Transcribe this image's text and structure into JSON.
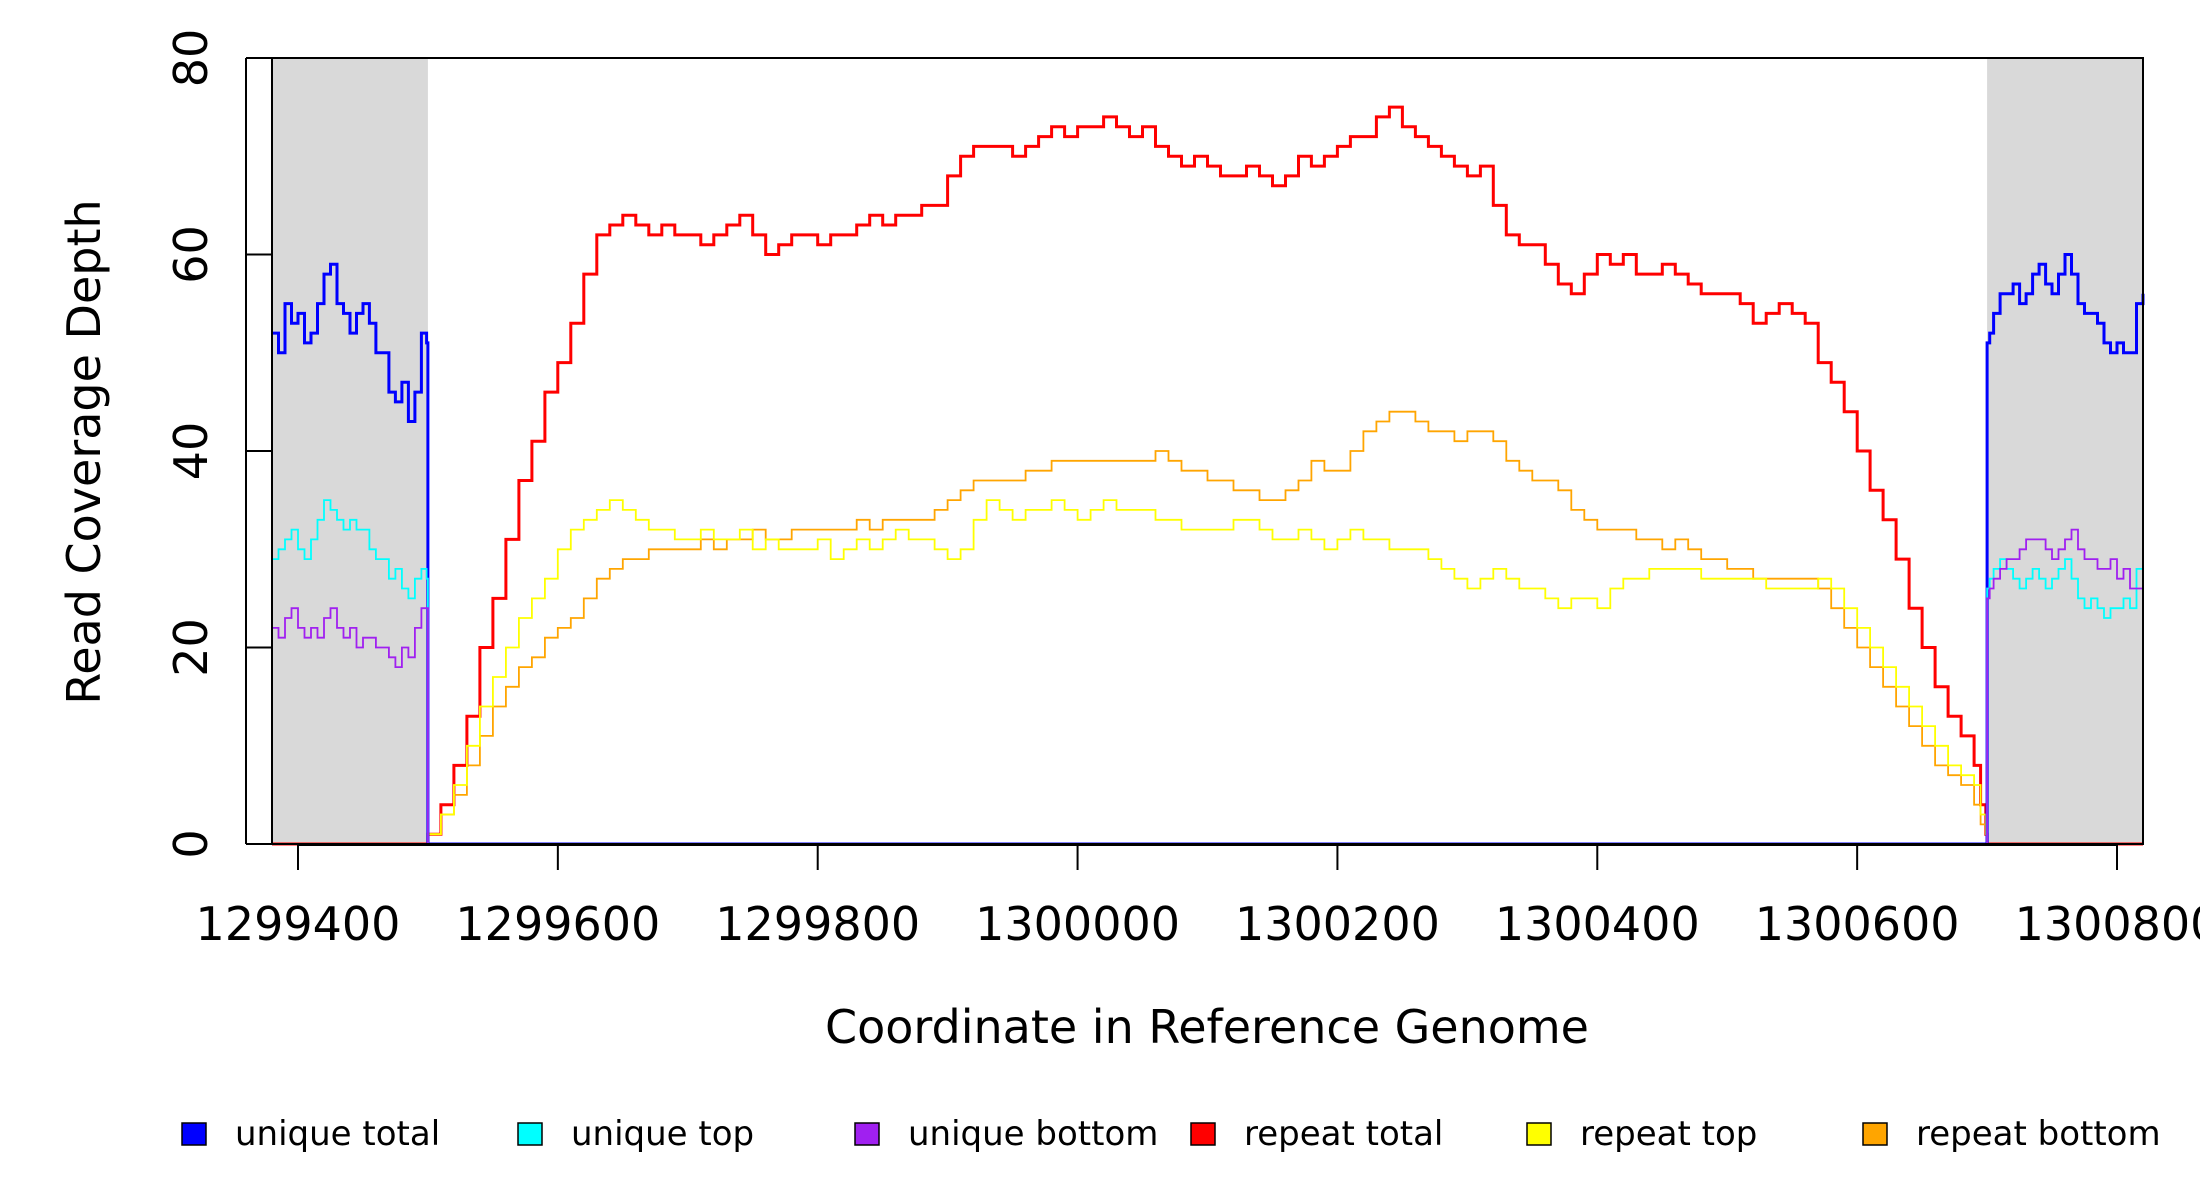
{
  "chart_data": {
    "type": "line",
    "title": "",
    "xlabel": "Coordinate in Reference Genome",
    "ylabel": "Read Coverage Depth",
    "xlim": [
      1299380,
      1300820
    ],
    "ylim": [
      0,
      80
    ],
    "x_ticks": [
      1299400,
      1299600,
      1299800,
      1300000,
      1300200,
      1300400,
      1300600,
      1300800
    ],
    "x_tick_labels": [
      "1299400",
      "1299600",
      "1299800",
      "1300000",
      "1300200",
      "1300400",
      "1300600",
      "1300800"
    ],
    "y_ticks": [
      0,
      20,
      40,
      60,
      80
    ],
    "y_tick_labels": [
      "0",
      "20",
      "40",
      "60",
      "80"
    ],
    "grid": false,
    "shaded_regions": [
      {
        "x": [
          1299380,
          1299500
        ],
        "color": "#d9d9d9"
      },
      {
        "x": [
          1300700,
          1300820
        ],
        "color": "#d9d9d9"
      }
    ],
    "legend_position": "bottom",
    "series": [
      {
        "name": "unique total",
        "color": "#0000ff",
        "x": [
          1299380,
          1299385,
          1299390,
          1299395,
          1299400,
          1299405,
          1299410,
          1299415,
          1299420,
          1299425,
          1299430,
          1299435,
          1299440,
          1299445,
          1299450,
          1299455,
          1299460,
          1299465,
          1299470,
          1299475,
          1299480,
          1299485,
          1299490,
          1299495,
          1299499,
          1299500,
          1299501,
          1300699,
          1300700,
          1300702,
          1300705,
          1300710,
          1300715,
          1300720,
          1300725,
          1300730,
          1300735,
          1300740,
          1300745,
          1300750,
          1300755,
          1300760,
          1300765,
          1300770,
          1300775,
          1300780,
          1300785,
          1300790,
          1300795,
          1300800,
          1300805,
          1300810,
          1300815,
          1300820
        ],
        "y": [
          52,
          50,
          55,
          53,
          54,
          51,
          52,
          55,
          58,
          59,
          55,
          54,
          52,
          54,
          55,
          53,
          50,
          50,
          46,
          45,
          47,
          43,
          46,
          52,
          51,
          0,
          0,
          0,
          51,
          52,
          54,
          56,
          56,
          57,
          55,
          56,
          58,
          59,
          57,
          56,
          58,
          60,
          58,
          55,
          54,
          54,
          53,
          51,
          50,
          51,
          50,
          50,
          55,
          56
        ]
      },
      {
        "name": "unique top",
        "color": "#00ffff",
        "x": [
          1299380,
          1299385,
          1299390,
          1299395,
          1299400,
          1299405,
          1299410,
          1299415,
          1299420,
          1299425,
          1299430,
          1299435,
          1299440,
          1299445,
          1299450,
          1299455,
          1299460,
          1299465,
          1299470,
          1299475,
          1299480,
          1299485,
          1299490,
          1299495,
          1299499,
          1299500,
          1299501,
          1300699,
          1300700,
          1300702,
          1300705,
          1300710,
          1300715,
          1300720,
          1300725,
          1300730,
          1300735,
          1300740,
          1300745,
          1300750,
          1300755,
          1300760,
          1300765,
          1300770,
          1300775,
          1300780,
          1300785,
          1300790,
          1300795,
          1300800,
          1300805,
          1300810,
          1300815,
          1300820
        ],
        "y": [
          29,
          30,
          31,
          32,
          30,
          29,
          31,
          33,
          35,
          34,
          33,
          32,
          33,
          32,
          32,
          30,
          29,
          29,
          27,
          28,
          26,
          25,
          27,
          28,
          27,
          0,
          0,
          0,
          26,
          27,
          28,
          29,
          28,
          27,
          26,
          27,
          28,
          27,
          26,
          27,
          28,
          29,
          27,
          25,
          24,
          25,
          24,
          23,
          24,
          24,
          25,
          24,
          28,
          29
        ]
      },
      {
        "name": "unique bottom",
        "color": "#a020f0",
        "x": [
          1299380,
          1299385,
          1299390,
          1299395,
          1299400,
          1299405,
          1299410,
          1299415,
          1299420,
          1299425,
          1299430,
          1299435,
          1299440,
          1299445,
          1299450,
          1299455,
          1299460,
          1299465,
          1299470,
          1299475,
          1299480,
          1299485,
          1299490,
          1299495,
          1299499,
          1299500,
          1299501,
          1300699,
          1300700,
          1300702,
          1300705,
          1300710,
          1300715,
          1300720,
          1300725,
          1300730,
          1300735,
          1300740,
          1300745,
          1300750,
          1300755,
          1300760,
          1300765,
          1300770,
          1300775,
          1300780,
          1300785,
          1300790,
          1300795,
          1300800,
          1300805,
          1300810,
          1300815,
          1300820
        ],
        "y": [
          22,
          21,
          23,
          24,
          22,
          21,
          22,
          21,
          23,
          24,
          22,
          21,
          22,
          20,
          21,
          21,
          20,
          20,
          19,
          18,
          20,
          19,
          22,
          24,
          24,
          0,
          0,
          0,
          25,
          26,
          27,
          28,
          29,
          29,
          30,
          31,
          31,
          31,
          30,
          29,
          30,
          31,
          32,
          30,
          29,
          29,
          28,
          28,
          29,
          27,
          28,
          26,
          26,
          27
        ]
      },
      {
        "name": "repeat total",
        "color": "#ff0000",
        "x": [
          1299380,
          1299499,
          1299500,
          1299510,
          1299520,
          1299530,
          1299540,
          1299550,
          1299560,
          1299570,
          1299580,
          1299590,
          1299600,
          1299610,
          1299620,
          1299630,
          1299640,
          1299650,
          1299660,
          1299670,
          1299680,
          1299690,
          1299700,
          1299710,
          1299720,
          1299730,
          1299740,
          1299750,
          1299760,
          1299770,
          1299780,
          1299790,
          1299800,
          1299810,
          1299820,
          1299830,
          1299840,
          1299850,
          1299860,
          1299870,
          1299880,
          1299890,
          1299900,
          1299910,
          1299920,
          1299930,
          1299940,
          1299950,
          1299960,
          1299970,
          1299980,
          1299990,
          1300000,
          1300010,
          1300020,
          1300030,
          1300040,
          1300050,
          1300060,
          1300070,
          1300080,
          1300090,
          1300100,
          1300110,
          1300120,
          1300130,
          1300140,
          1300150,
          1300160,
          1300170,
          1300180,
          1300190,
          1300200,
          1300210,
          1300220,
          1300230,
          1300240,
          1300250,
          1300260,
          1300270,
          1300280,
          1300290,
          1300300,
          1300310,
          1300320,
          1300330,
          1300340,
          1300350,
          1300360,
          1300370,
          1300380,
          1300390,
          1300400,
          1300410,
          1300420,
          1300430,
          1300440,
          1300450,
          1300460,
          1300470,
          1300480,
          1300490,
          1300500,
          1300510,
          1300520,
          1300530,
          1300540,
          1300550,
          1300560,
          1300570,
          1300580,
          1300590,
          1300600,
          1300610,
          1300620,
          1300630,
          1300640,
          1300650,
          1300660,
          1300670,
          1300680,
          1300690,
          1300695,
          1300699,
          1300700,
          1300820
        ],
        "y": [
          0,
          0,
          1,
          4,
          8,
          13,
          20,
          25,
          31,
          37,
          41,
          46,
          49,
          53,
          58,
          62,
          63,
          64,
          63,
          62,
          63,
          62,
          62,
          61,
          62,
          63,
          64,
          62,
          60,
          61,
          62,
          62,
          61,
          62,
          62,
          63,
          64,
          63,
          64,
          64,
          65,
          65,
          68,
          70,
          71,
          71,
          71,
          70,
          71,
          72,
          73,
          72,
          73,
          73,
          74,
          73,
          72,
          73,
          71,
          70,
          69,
          70,
          69,
          68,
          68,
          69,
          68,
          67,
          68,
          70,
          69,
          70,
          71,
          72,
          72,
          74,
          75,
          73,
          72,
          71,
          70,
          69,
          68,
          69,
          65,
          62,
          61,
          61,
          59,
          57,
          56,
          58,
          60,
          59,
          60,
          58,
          58,
          59,
          58,
          57,
          56,
          56,
          56,
          55,
          53,
          54,
          55,
          54,
          53,
          49,
          47,
          44,
          40,
          36,
          33,
          29,
          24,
          20,
          16,
          13,
          11,
          8,
          4,
          1,
          0,
          0
        ]
      },
      {
        "name": "repeat top",
        "color": "#ffff00",
        "x": [
          1299380,
          1299499,
          1299500,
          1299510,
          1299520,
          1299530,
          1299540,
          1299550,
          1299560,
          1299570,
          1299580,
          1299590,
          1299600,
          1299610,
          1299620,
          1299630,
          1299640,
          1299650,
          1299660,
          1299670,
          1299680,
          1299690,
          1299700,
          1299710,
          1299720,
          1299730,
          1299740,
          1299750,
          1299760,
          1299770,
          1299780,
          1299790,
          1299800,
          1299810,
          1299820,
          1299830,
          1299840,
          1299850,
          1299860,
          1299870,
          1299880,
          1299890,
          1299900,
          1299910,
          1299920,
          1299930,
          1299940,
          1299950,
          1299960,
          1299970,
          1299980,
          1299990,
          1300000,
          1300010,
          1300020,
          1300030,
          1300040,
          1300050,
          1300060,
          1300070,
          1300080,
          1300090,
          1300100,
          1300110,
          1300120,
          1300130,
          1300140,
          1300150,
          1300160,
          1300170,
          1300180,
          1300190,
          1300200,
          1300210,
          1300220,
          1300230,
          1300240,
          1300250,
          1300260,
          1300270,
          1300280,
          1300290,
          1300300,
          1300310,
          1300320,
          1300330,
          1300340,
          1300350,
          1300360,
          1300370,
          1300380,
          1300390,
          1300400,
          1300410,
          1300420,
          1300430,
          1300440,
          1300450,
          1300460,
          1300470,
          1300480,
          1300490,
          1300500,
          1300510,
          1300520,
          1300530,
          1300540,
          1300550,
          1300560,
          1300570,
          1300580,
          1300590,
          1300600,
          1300610,
          1300620,
          1300630,
          1300640,
          1300650,
          1300660,
          1300670,
          1300680,
          1300690,
          1300695,
          1300699,
          1300700,
          1300820
        ],
        "y": [
          0,
          0,
          1,
          3,
          6,
          10,
          14,
          17,
          20,
          23,
          25,
          27,
          30,
          32,
          33,
          34,
          35,
          34,
          33,
          32,
          32,
          31,
          31,
          32,
          31,
          31,
          32,
          30,
          31,
          30,
          30,
          30,
          31,
          29,
          30,
          31,
          30,
          31,
          32,
          31,
          31,
          30,
          29,
          30,
          33,
          35,
          34,
          33,
          34,
          34,
          35,
          34,
          33,
          34,
          35,
          34,
          34,
          34,
          33,
          33,
          32,
          32,
          32,
          32,
          33,
          33,
          32,
          31,
          31,
          32,
          31,
          30,
          31,
          32,
          31,
          31,
          30,
          30,
          30,
          29,
          28,
          27,
          26,
          27,
          28,
          27,
          26,
          26,
          25,
          24,
          25,
          25,
          24,
          26,
          27,
          27,
          28,
          28,
          28,
          28,
          27,
          27,
          27,
          27,
          27,
          26,
          26,
          26,
          26,
          27,
          26,
          24,
          22,
          20,
          18,
          16,
          14,
          12,
          10,
          8,
          7,
          6,
          3,
          1,
          0,
          0
        ]
      },
      {
        "name": "repeat bottom",
        "color": "#ffa500",
        "x": [
          1299380,
          1299499,
          1299500,
          1299510,
          1299520,
          1299530,
          1299540,
          1299550,
          1299560,
          1299570,
          1299580,
          1299590,
          1299600,
          1299610,
          1299620,
          1299630,
          1299640,
          1299650,
          1299660,
          1299670,
          1299680,
          1299690,
          1299700,
          1299710,
          1299720,
          1299730,
          1299740,
          1299750,
          1299760,
          1299770,
          1299780,
          1299790,
          1299800,
          1299810,
          1299820,
          1299830,
          1299840,
          1299850,
          1299860,
          1299870,
          1299880,
          1299890,
          1299900,
          1299910,
          1299920,
          1299930,
          1299940,
          1299950,
          1299960,
          1299970,
          1299980,
          1299990,
          1300000,
          1300010,
          1300020,
          1300030,
          1300040,
          1300050,
          1300060,
          1300070,
          1300080,
          1300090,
          1300100,
          1300110,
          1300120,
          1300130,
          1300140,
          1300150,
          1300160,
          1300170,
          1300180,
          1300190,
          1300200,
          1300210,
          1300220,
          1300230,
          1300240,
          1300250,
          1300260,
          1300270,
          1300280,
          1300290,
          1300300,
          1300310,
          1300320,
          1300330,
          1300340,
          1300350,
          1300360,
          1300370,
          1300380,
          1300390,
          1300400,
          1300410,
          1300420,
          1300430,
          1300440,
          1300450,
          1300460,
          1300470,
          1300480,
          1300490,
          1300500,
          1300510,
          1300520,
          1300530,
          1300540,
          1300550,
          1300560,
          1300570,
          1300580,
          1300590,
          1300600,
          1300610,
          1300620,
          1300630,
          1300640,
          1300650,
          1300660,
          1300670,
          1300680,
          1300690,
          1300695,
          1300699,
          1300700,
          1300820
        ],
        "y": [
          0,
          0,
          1,
          3,
          5,
          8,
          11,
          14,
          16,
          18,
          19,
          21,
          22,
          23,
          25,
          27,
          28,
          29,
          29,
          30,
          30,
          30,
          30,
          31,
          30,
          31,
          31,
          32,
          31,
          31,
          32,
          32,
          32,
          32,
          32,
          33,
          32,
          33,
          33,
          33,
          33,
          34,
          35,
          36,
          37,
          37,
          37,
          37,
          38,
          38,
          39,
          39,
          39,
          39,
          39,
          39,
          39,
          39,
          40,
          39,
          38,
          38,
          37,
          37,
          36,
          36,
          35,
          35,
          36,
          37,
          39,
          38,
          38,
          40,
          42,
          43,
          44,
          44,
          43,
          42,
          42,
          41,
          42,
          42,
          41,
          39,
          38,
          37,
          37,
          36,
          34,
          33,
          32,
          32,
          32,
          31,
          31,
          30,
          31,
          30,
          29,
          29,
          28,
          28,
          27,
          27,
          27,
          27,
          27,
          26,
          24,
          22,
          20,
          18,
          16,
          14,
          12,
          10,
          8,
          7,
          6,
          4,
          2,
          1,
          0,
          0
        ]
      }
    ]
  }
}
